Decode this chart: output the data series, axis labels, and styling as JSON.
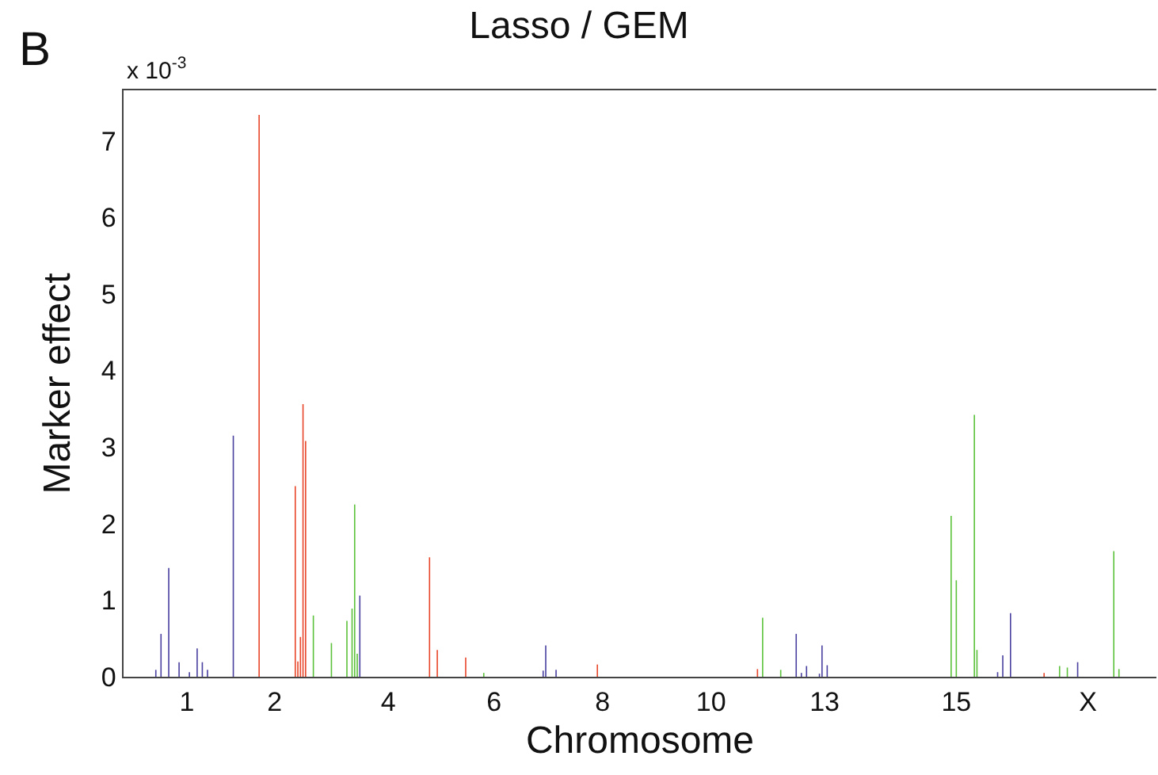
{
  "chart_data": {
    "type": "bar",
    "title": "Lasso / GEM",
    "xlabel": "Chromosome",
    "ylabel": "Marker effect",
    "annotations": [
      "B",
      "x 10$^{-3}$"
    ],
    "categories": [
      null,
      null,
      null,
      null,
      null,
      null,
      null,
      null,
      null,
      null,
      null,
      null,
      null,
      null,
      null,
      null,
      null,
      null,
      null,
      null,
      null,
      null,
      null,
      null,
      "1",
      null,
      null,
      null,
      null,
      null,
      null,
      null,
      null,
      null,
      null,
      null,
      null,
      null,
      null,
      null,
      null,
      null,
      null,
      null,
      null,
      null,
      null,
      null,
      null,
      null,
      null,
      null,
      null,
      null,
      null,
      null,
      null,
      null,
      "2",
      null,
      null,
      null,
      null,
      null,
      null,
      null,
      null,
      null,
      null,
      null,
      null,
      null,
      null,
      null,
      null,
      null,
      null,
      null,
      null,
      null,
      null,
      null,
      null,
      null,
      null,
      null,
      null,
      null,
      null,
      null,
      null,
      null,
      null,
      null,
      null,
      null,
      null,
      null,
      null,
      null,
      null,
      null,
      "4",
      null,
      null,
      null,
      null,
      null,
      null,
      null,
      null,
      null,
      null,
      null,
      null,
      null,
      null,
      null,
      null,
      null,
      null,
      null,
      null,
      null,
      null,
      null,
      null,
      null,
      null,
      null,
      null,
      null,
      null,
      null,
      null,
      null,
      null,
      null,
      null,
      null,
      null,
      null,
      null,
      "6",
      null,
      null,
      null,
      null,
      null,
      null,
      null,
      null,
      null,
      null,
      null,
      null,
      null,
      null,
      null,
      null,
      null,
      null,
      null,
      null,
      null,
      null,
      null,
      null,
      null,
      null,
      null,
      null,
      null,
      null,
      null,
      null,
      null,
      null,
      null,
      null,
      null,
      null,
      null,
      null,
      null,
      "8",
      null,
      null,
      null,
      null,
      null,
      null,
      null,
      null,
      null,
      null,
      null,
      null,
      null,
      null,
      null,
      null,
      null,
      null,
      null,
      null,
      null,
      null,
      null,
      null,
      null,
      null,
      null,
      null,
      null,
      null,
      null,
      null,
      null,
      null,
      null,
      null,
      null,
      null,
      null,
      null,
      null,
      "10",
      null,
      null,
      null,
      null,
      null,
      null,
      null,
      null,
      null,
      null,
      null,
      null,
      null,
      null,
      null,
      null,
      null,
      null,
      null,
      null,
      null,
      null,
      null,
      null,
      null,
      null,
      null,
      null,
      null,
      null,
      null,
      null,
      null,
      null,
      null,
      null,
      null,
      null,
      null,
      null,
      null,
      null,
      null,
      "13",
      null,
      null,
      null,
      null,
      null,
      null,
      null,
      null,
      null,
      null,
      null,
      null,
      null,
      null,
      null,
      null,
      null,
      null,
      null,
      null,
      null,
      null,
      null,
      null,
      null,
      null,
      null,
      null,
      null,
      null,
      null,
      null,
      null,
      null,
      null,
      null,
      null,
      null,
      null,
      null,
      null,
      null,
      null,
      null,
      null,
      null,
      null,
      null,
      null,
      null,
      "15",
      null,
      null,
      null,
      null,
      null,
      null,
      null,
      null,
      null,
      null,
      null,
      null,
      null,
      null,
      null,
      null,
      null,
      null,
      null,
      null,
      null,
      null,
      null,
      null,
      null,
      null,
      null,
      null,
      null,
      null,
      null,
      null,
      null,
      null,
      null,
      null,
      null,
      null,
      null,
      null,
      null,
      null,
      null,
      null,
      null,
      null,
      null,
      null,
      null,
      null,
      "X",
      null,
      null,
      null,
      null,
      null,
      null,
      null,
      null,
      null,
      null,
      null,
      null,
      null,
      null,
      null,
      null,
      null,
      null,
      null,
      null,
      null,
      null,
      null,
      null,
      null,
      null
    ],
    "ylim": [
      0,
      7.66
    ],
    "yticks": [
      0,
      1,
      2,
      3,
      4,
      5,
      6,
      7
    ],
    "series": [
      {
        "color": "#4a41a0",
        "values": [
          null,
          null,
          null,
          null,
          null,
          null,
          null,
          null,
          null,
          null,
          null,
          null,
          0.09,
          null,
          0.56,
          null,
          null,
          1.42,
          null,
          null,
          null,
          0.19,
          null,
          null,
          null,
          0.06,
          null,
          null,
          0.37,
          null,
          0.19,
          null,
          0.09,
          null,
          null,
          null,
          null,
          null,
          null,
          null,
          null,
          null,
          3.15,
          null,
          null,
          null,
          null,
          null,
          null,
          null,
          null,
          null,
          null,
          null,
          null,
          null,
          null,
          null,
          null,
          null,
          null,
          null,
          null,
          null,
          null,
          null,
          null,
          null,
          null,
          null,
          null,
          null,
          null,
          null,
          null,
          null,
          null,
          null,
          null,
          null,
          null,
          null,
          null,
          null,
          null,
          null,
          null,
          null,
          null,
          null,
          null,
          1.06,
          null,
          null,
          null,
          null,
          null,
          null,
          null,
          null,
          null,
          null,
          null,
          null,
          null,
          null,
          null,
          null,
          null,
          null,
          null,
          null,
          null,
          null,
          null,
          null,
          null,
          null,
          null,
          null,
          null,
          null,
          null,
          null,
          null,
          null,
          null,
          null,
          null,
          null,
          null,
          null,
          null,
          null,
          null,
          null,
          null,
          null,
          null,
          null,
          null,
          null,
          null,
          null,
          null,
          null,
          null,
          null,
          null,
          null,
          null,
          null,
          null,
          null,
          null,
          null,
          null,
          null,
          null,
          null,
          null,
          null,
          0.08,
          0.41,
          null,
          null,
          null,
          0.09,
          null,
          null,
          null,
          null,
          null,
          null,
          null,
          null,
          null,
          null,
          null,
          null,
          null,
          null,
          null,
          null,
          null,
          null,
          null,
          null,
          null,
          null,
          null,
          null,
          null,
          null,
          null,
          null,
          null,
          null,
          null,
          null,
          null,
          null,
          null,
          null,
          null,
          null,
          null,
          null,
          null,
          null,
          null,
          null,
          null,
          null,
          null,
          null,
          null,
          null,
          null,
          null,
          null,
          null,
          null,
          null,
          null,
          null,
          null,
          null,
          null,
          null,
          null,
          null,
          null,
          null,
          null,
          null,
          null,
          null,
          null,
          null,
          null,
          null,
          null,
          null,
          null,
          null,
          null,
          null,
          null,
          null,
          null,
          null,
          null,
          null,
          null,
          null,
          null,
          null,
          null,
          null,
          0.56,
          null,
          0.05,
          null,
          0.14,
          null,
          null,
          null,
          null,
          0.04,
          0.41,
          null,
          0.15,
          null,
          null,
          null,
          null,
          null,
          null,
          null,
          null,
          null,
          null,
          null,
          null,
          null,
          null,
          null,
          null,
          null,
          null,
          null,
          null,
          null,
          null,
          null,
          null,
          null,
          null,
          null,
          null,
          null,
          null,
          null,
          null,
          null,
          null,
          null,
          null,
          null,
          null,
          null,
          null,
          null,
          null,
          null,
          null,
          null,
          null,
          null,
          null,
          null,
          null,
          null,
          null,
          null,
          null,
          null,
          null,
          null,
          null,
          null,
          null,
          null,
          null,
          null,
          null,
          null,
          0.06,
          null,
          0.28,
          null,
          null,
          0.83,
          null,
          null,
          null,
          null,
          null,
          null,
          null,
          null,
          null,
          null,
          null,
          null,
          null,
          null,
          null,
          null,
          null,
          null,
          null,
          null,
          null,
          null,
          null,
          null,
          null,
          0.19,
          null,
          null,
          null,
          null,
          null,
          null,
          null,
          null,
          null,
          null,
          null,
          null,
          null,
          null,
          null,
          null,
          null,
          null,
          null,
          null,
          null,
          null,
          null,
          null,
          null,
          null,
          null,
          null,
          null,
          null
        ]
      },
      {
        "color": "#e8472b",
        "values": [
          null,
          null,
          null,
          null,
          null,
          null,
          null,
          null,
          null,
          null,
          null,
          null,
          null,
          null,
          null,
          null,
          null,
          null,
          null,
          null,
          null,
          null,
          null,
          null,
          null,
          null,
          null,
          null,
          null,
          null,
          null,
          null,
          null,
          null,
          null,
          null,
          null,
          null,
          null,
          null,
          null,
          null,
          null,
          null,
          null,
          null,
          null,
          null,
          null,
          null,
          null,
          null,
          7.34,
          null,
          null,
          null,
          null,
          null,
          null,
          null,
          null,
          null,
          null,
          null,
          null,
          null,
          2.49,
          0.2,
          0.52,
          3.56,
          3.08,
          null,
          null,
          null,
          null,
          null,
          null,
          null,
          null,
          null,
          null,
          null,
          null,
          null,
          null,
          null,
          null,
          null,
          null,
          null,
          null,
          null,
          null,
          null,
          null,
          null,
          null,
          null,
          null,
          null,
          null,
          null,
          null,
          null,
          null,
          null,
          null,
          null,
          null,
          null,
          null,
          null,
          null,
          null,
          null,
          null,
          null,
          null,
          1.56,
          null,
          null,
          0.35,
          null,
          null,
          null,
          null,
          null,
          null,
          null,
          null,
          null,
          null,
          0.25,
          null,
          null,
          null,
          null,
          null,
          null,
          null,
          null,
          null,
          null,
          null,
          null,
          null,
          null,
          null,
          null,
          null,
          null,
          null,
          null,
          null,
          null,
          null,
          null,
          null,
          null,
          null,
          null,
          null,
          null,
          null,
          null,
          null,
          null,
          null,
          null,
          null,
          null,
          null,
          null,
          null,
          null,
          null,
          null,
          null,
          null,
          null,
          null,
          null,
          null,
          0.16,
          null,
          null,
          null,
          null,
          null,
          null,
          null,
          null,
          null,
          null,
          null,
          null,
          null,
          null,
          null,
          null,
          null,
          null,
          null,
          null,
          null,
          null,
          null,
          null,
          null,
          null,
          null,
          null,
          null,
          null,
          null,
          null,
          null,
          null,
          null,
          null,
          null,
          null,
          null,
          null,
          null,
          null,
          null,
          null,
          null,
          null,
          null,
          null,
          null,
          null,
          null,
          null,
          null,
          null,
          null,
          null,
          null,
          null,
          null,
          null,
          null,
          0.1,
          null,
          null,
          null,
          null,
          null,
          null,
          null,
          null,
          null,
          null,
          null,
          null,
          null,
          null,
          null,
          null,
          null,
          null,
          null,
          null,
          null,
          null,
          null,
          null,
          null,
          null,
          null,
          null,
          null,
          null,
          null,
          null,
          null,
          null,
          null,
          null,
          null,
          null,
          null,
          null,
          null,
          null,
          null,
          null,
          null,
          null,
          null,
          null,
          null,
          null,
          null,
          null,
          null,
          null,
          null,
          null,
          null,
          null,
          null,
          null,
          null,
          null,
          null,
          null,
          null,
          null,
          null,
          null,
          null,
          null,
          null,
          null,
          null,
          null,
          null,
          null,
          null,
          null,
          null,
          null,
          null,
          null,
          null,
          null,
          null,
          null,
          null,
          null,
          null,
          null,
          null,
          null,
          null,
          null,
          null,
          null,
          null,
          null,
          null,
          null,
          null,
          null,
          null,
          null,
          null,
          null,
          null,
          null,
          null,
          null,
          0.05,
          null,
          null,
          null,
          null,
          null,
          null,
          null,
          null,
          null,
          null,
          null,
          null,
          null,
          null,
          null,
          null,
          null,
          null,
          null,
          null,
          null,
          null,
          null,
          null,
          null,
          null,
          null,
          null,
          null,
          null,
          null,
          null,
          null,
          null,
          null,
          null,
          null,
          null,
          null,
          null,
          null,
          null,
          null
        ]
      },
      {
        "color": "#5cc23c",
        "values": [
          null,
          null,
          null,
          null,
          null,
          null,
          null,
          null,
          null,
          null,
          null,
          null,
          null,
          null,
          null,
          null,
          null,
          null,
          null,
          null,
          null,
          null,
          null,
          null,
          null,
          null,
          null,
          null,
          null,
          null,
          null,
          null,
          null,
          null,
          null,
          null,
          null,
          null,
          null,
          null,
          null,
          null,
          null,
          null,
          null,
          null,
          null,
          null,
          null,
          null,
          null,
          null,
          null,
          null,
          null,
          null,
          null,
          null,
          null,
          null,
          null,
          null,
          null,
          null,
          null,
          null,
          null,
          null,
          null,
          null,
          null,
          null,
          null,
          0.8,
          null,
          null,
          null,
          null,
          null,
          null,
          0.44,
          null,
          null,
          null,
          null,
          null,
          0.73,
          null,
          0.89,
          2.25,
          0.3,
          null,
          null,
          null,
          null,
          null,
          null,
          null,
          null,
          null,
          null,
          null,
          null,
          null,
          null,
          null,
          null,
          null,
          null,
          null,
          null,
          null,
          null,
          null,
          null,
          null,
          null,
          null,
          null,
          null,
          null,
          null,
          null,
          null,
          null,
          null,
          null,
          null,
          null,
          null,
          null,
          null,
          null,
          null,
          null,
          null,
          null,
          null,
          null,
          0.05,
          null,
          null,
          null,
          null,
          null,
          null,
          null,
          null,
          null,
          null,
          null,
          null,
          null,
          null,
          null,
          null,
          null,
          null,
          null,
          null,
          null,
          null,
          null,
          null,
          null,
          null,
          null,
          null,
          null,
          null,
          null,
          null,
          null,
          null,
          null,
          null,
          null,
          null,
          null,
          null,
          null,
          null,
          null,
          null,
          null,
          null,
          null,
          null,
          null,
          null,
          null,
          null,
          null,
          null,
          null,
          null,
          null,
          null,
          null,
          null,
          null,
          null,
          null,
          null,
          null,
          null,
          null,
          null,
          null,
          null,
          null,
          null,
          null,
          null,
          null,
          null,
          null,
          null,
          null,
          null,
          null,
          null,
          null,
          null,
          null,
          null,
          null,
          null,
          null,
          null,
          null,
          null,
          null,
          null,
          null,
          null,
          null,
          null,
          null,
          null,
          null,
          null,
          null,
          null,
          null,
          null,
          null,
          0.77,
          null,
          null,
          null,
          null,
          null,
          null,
          0.09,
          null,
          null,
          null,
          null,
          null,
          null,
          null,
          null,
          null,
          null,
          null,
          null,
          null,
          null,
          null,
          null,
          null,
          null,
          null,
          null,
          null,
          null,
          null,
          null,
          null,
          null,
          null,
          null,
          null,
          null,
          null,
          null,
          null,
          null,
          null,
          null,
          null,
          null,
          null,
          null,
          null,
          null,
          null,
          null,
          null,
          null,
          null,
          null,
          null,
          null,
          null,
          null,
          null,
          null,
          null,
          null,
          null,
          null,
          null,
          null,
          null,
          null,
          null,
          null,
          null,
          2.1,
          null,
          1.26,
          null,
          null,
          null,
          null,
          null,
          null,
          3.42,
          0.35,
          null,
          null,
          null,
          null,
          null,
          null,
          null,
          null,
          null,
          null,
          null,
          null,
          null,
          null,
          null,
          null,
          null,
          null,
          null,
          null,
          null,
          null,
          null,
          null,
          null,
          null,
          null,
          null,
          null,
          null,
          null,
          0.14,
          null,
          null,
          0.12,
          null,
          null,
          null,
          null,
          null,
          null,
          null,
          null,
          null,
          null,
          null,
          null,
          null,
          null,
          null,
          null,
          null,
          1.64,
          null,
          0.1,
          null,
          null,
          null,
          null,
          null,
          null,
          null,
          null,
          null,
          null,
          null,
          null,
          null,
          null
        ]
      }
    ]
  }
}
